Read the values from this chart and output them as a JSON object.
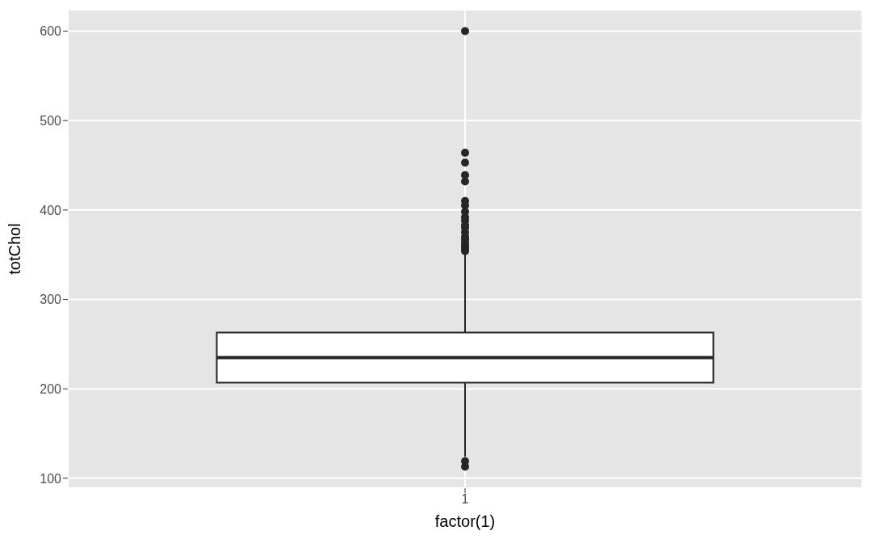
{
  "chart_data": {
    "type": "box",
    "xlabel": "factor(1)",
    "ylabel": "totChol",
    "categories": [
      "1"
    ],
    "boxes": [
      {
        "low": 124,
        "q1": 207,
        "median": 235,
        "q3": 263,
        "high": 352,
        "outliers": [
          600,
          464,
          453,
          439,
          432,
          410,
          405,
          398,
          392,
          388,
          383,
          380,
          375,
          370,
          367,
          363,
          360,
          357,
          354,
          119,
          113
        ]
      }
    ],
    "ylim": [
      89,
      624
    ],
    "yticks": [
      100,
      200,
      300,
      400,
      500,
      600
    ],
    "grid": true,
    "color": "#262626"
  }
}
